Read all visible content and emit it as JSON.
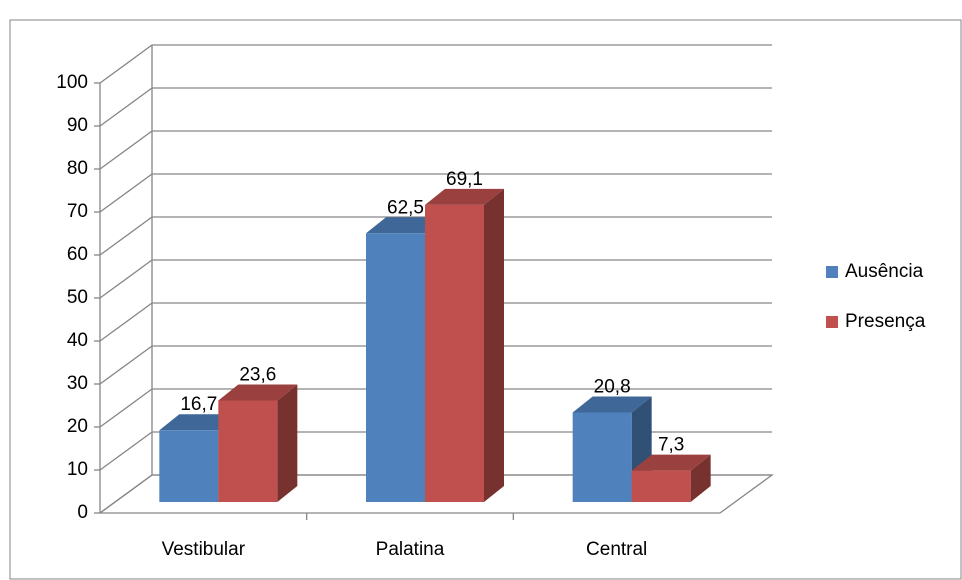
{
  "chart_data": {
    "type": "bar3d",
    "categories": [
      "Vestibular",
      "Palatina",
      "Central"
    ],
    "series": [
      {
        "name": "Ausência",
        "color": "#4f81bd",
        "values": [
          16.7,
          62.5,
          20.8
        ],
        "value_labels": [
          "16,7",
          "62,5",
          "20,8"
        ]
      },
      {
        "name": "Presença",
        "color": "#c0504d",
        "values": [
          23.6,
          69.1,
          7.3
        ],
        "value_labels": [
          "23,6",
          "69,1",
          "7,3"
        ]
      }
    ],
    "ylim": [
      0,
      100
    ],
    "yticks": [
      0,
      10,
      20,
      30,
      40,
      50,
      60,
      70,
      80,
      90,
      100
    ],
    "grid": true,
    "legend": "right"
  }
}
